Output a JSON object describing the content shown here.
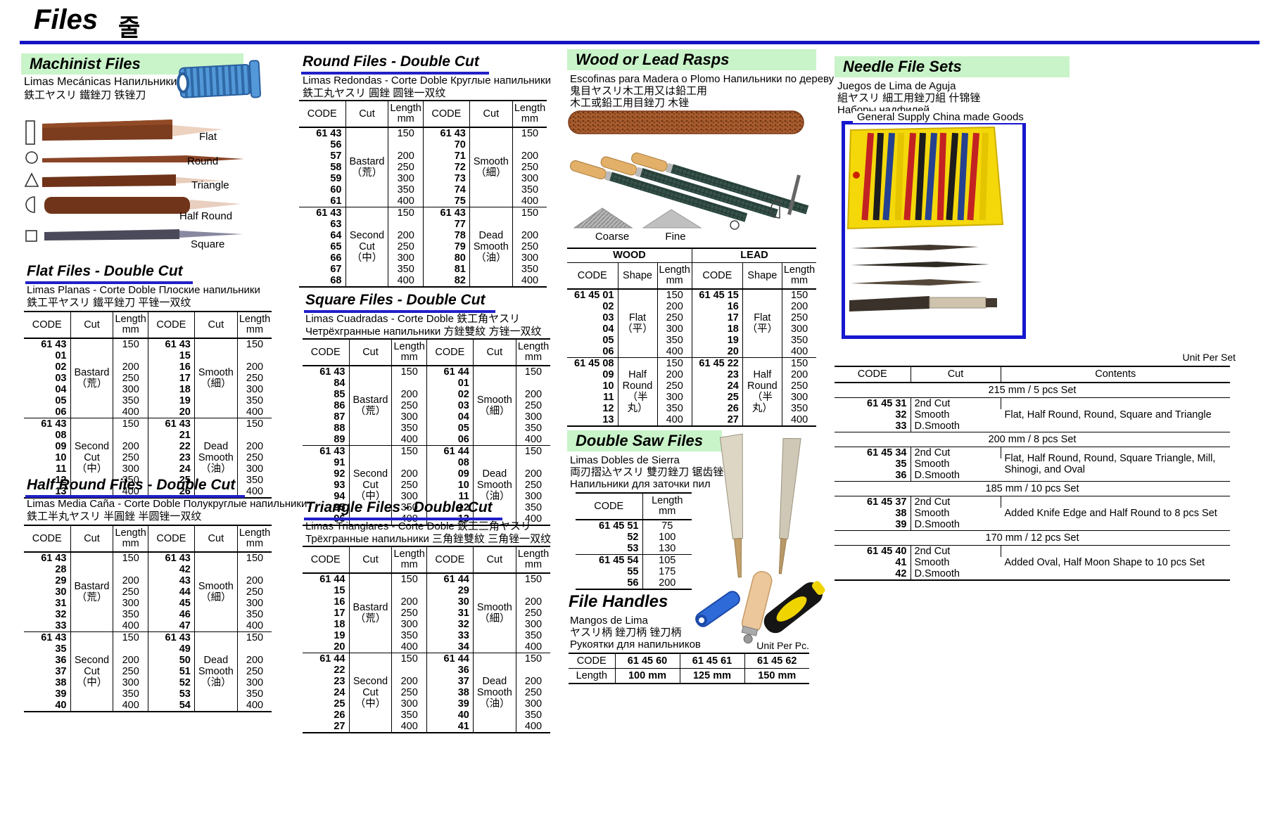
{
  "colors": {
    "accent_green": "#c9f3c9",
    "accent_blue": "#1717cf"
  },
  "header": {
    "title": "Files",
    "title_ko": "줄"
  },
  "machinist": {
    "title": "Machinist Files",
    "sub_es": "Limas Mecánicas Напильники",
    "sub_cjk": "鉄工ヤスリ 鐵銼刀 铁锉刀",
    "labels": [
      "Flat",
      "Round",
      "Triangle",
      "Half Round",
      "Square"
    ]
  },
  "flat": {
    "title": "Flat Files - Double Cut",
    "sub_es": "Limas Planas - Corte Doble Плоские напильники",
    "sub_cjk": "鉄工平ヤスリ 鐵平銼刀 平锉一双纹",
    "table": {
      "headers": [
        "CODE",
        "Cut",
        "Length\nmm",
        "CODE",
        "Cut",
        "Length\nmm"
      ],
      "groups": [
        {
          "cells": [
            {
              "codes": [
                "61 43 01",
                "02",
                "03",
                "04",
                "05",
                "06"
              ],
              "mid": "Bastard\n（荒）",
              "lengths": [
                "150",
                "200",
                "250",
                "300",
                "350",
                "400"
              ]
            },
            {
              "codes": [
                "61 43 15",
                "16",
                "17",
                "18",
                "19",
                "20"
              ],
              "mid": "Smooth\n（細）",
              "lengths": [
                "150",
                "200",
                "250",
                "300",
                "350",
                "400"
              ]
            }
          ]
        },
        {
          "cells": [
            {
              "codes": [
                "61 43 08",
                "09",
                "10",
                "11",
                "12",
                "13"
              ],
              "mid": "Second\nCut\n（中）",
              "lengths": [
                "150",
                "200",
                "250",
                "300",
                "350",
                "400"
              ]
            },
            {
              "codes": [
                "61 43 21",
                "22",
                "23",
                "24",
                "25",
                "26"
              ],
              "mid": "Dead\nSmooth\n（油）",
              "lengths": [
                "150",
                "200",
                "250",
                "300",
                "350",
                "400"
              ]
            }
          ]
        }
      ]
    }
  },
  "half_round": {
    "title": "Half Round Files - Double Cut",
    "sub_es": "Limas Media Caña - Corte Doble Полукруглые напильники",
    "sub_cjk": "鉄工半丸ヤスリ 半圓銼 半圆锉一双纹",
    "table": {
      "headers": [
        "CODE",
        "Cut",
        "Length\nmm",
        "CODE",
        "Cut",
        "Length\nmm"
      ],
      "groups": [
        {
          "cells": [
            {
              "codes": [
                "61 43 28",
                "29",
                "30",
                "31",
                "32",
                "33"
              ],
              "mid": "Bastard\n（荒）",
              "lengths": [
                "150",
                "200",
                "250",
                "300",
                "350",
                "400"
              ]
            },
            {
              "codes": [
                "61 43 42",
                "43",
                "44",
                "45",
                "46",
                "47"
              ],
              "mid": "Smooth\n（細）",
              "lengths": [
                "150",
                "200",
                "250",
                "300",
                "350",
                "400"
              ]
            }
          ]
        },
        {
          "cells": [
            {
              "codes": [
                "61 43 35",
                "36",
                "37",
                "38",
                "39",
                "40"
              ],
              "mid": "Second\nCut\n（中）",
              "lengths": [
                "150",
                "200",
                "250",
                "300",
                "350",
                "400"
              ]
            },
            {
              "codes": [
                "61 43 49",
                "50",
                "51",
                "52",
                "53",
                "54"
              ],
              "mid": "Dead\nSmooth\n（油）",
              "lengths": [
                "150",
                "200",
                "250",
                "300",
                "350",
                "400"
              ]
            }
          ]
        }
      ]
    }
  },
  "round": {
    "title": "Round Files - Double Cut",
    "sub_es": "Limas Redondas - Corte Doble Круглые напильники",
    "sub_cjk": "鉄工丸ヤスリ 圓銼 圆锉一双纹",
    "table": {
      "headers": [
        "CODE",
        "Cut",
        "Length\nmm",
        "CODE",
        "Cut",
        "Length\nmm"
      ],
      "groups": [
        {
          "cells": [
            {
              "codes": [
                "61 43 56",
                "57",
                "58",
                "59",
                "60",
                "61"
              ],
              "mid": "Bastard\n（荒）",
              "lengths": [
                "150",
                "200",
                "250",
                "300",
                "350",
                "400"
              ]
            },
            {
              "codes": [
                "61 43 70",
                "71",
                "72",
                "73",
                "74",
                "75"
              ],
              "mid": "Smooth\n（細）",
              "lengths": [
                "150",
                "200",
                "250",
                "300",
                "350",
                "400"
              ]
            }
          ]
        },
        {
          "cells": [
            {
              "codes": [
                "61 43 63",
                "64",
                "65",
                "66",
                "67",
                "68"
              ],
              "mid": "Second\nCut\n（中）",
              "lengths": [
                "150",
                "200",
                "250",
                "300",
                "350",
                "400"
              ]
            },
            {
              "codes": [
                "61 43 77",
                "78",
                "79",
                "80",
                "81",
                "82"
              ],
              "mid": "Dead\nSmooth\n（油）",
              "lengths": [
                "150",
                "200",
                "250",
                "300",
                "350",
                "400"
              ]
            }
          ]
        }
      ]
    }
  },
  "square": {
    "title": "Square Files - Double Cut",
    "sub_es": "Limas Cuadradas - Corte Doble 鉄工角ヤスリ",
    "sub_cjk": "Четрёхгранные напильники 方銼雙紋 方锉一双纹",
    "table": {
      "headers": [
        "CODE",
        "Cut",
        "Length\nmm",
        "CODE",
        "Cut",
        "Length\nmm"
      ],
      "groups": [
        {
          "cells": [
            {
              "codes": [
                "61 43 84",
                "85",
                "86",
                "87",
                "88",
                "89"
              ],
              "mid": "Bastard\n（荒）",
              "lengths": [
                "150",
                "200",
                "250",
                "300",
                "350",
                "400"
              ]
            },
            {
              "codes": [
                "61 44 01",
                "02",
                "03",
                "04",
                "05",
                "06"
              ],
              "mid": "Smooth\n（細）",
              "lengths": [
                "150",
                "200",
                "250",
                "300",
                "350",
                "400"
              ]
            }
          ]
        },
        {
          "cells": [
            {
              "codes": [
                "61 43 91",
                "92",
                "93",
                "94",
                "95",
                "96"
              ],
              "mid": "Second\nCut\n（中）",
              "lengths": [
                "150",
                "200",
                "250",
                "300",
                "350",
                "400"
              ]
            },
            {
              "codes": [
                "61 44 08",
                "09",
                "10",
                "11",
                "12",
                "13"
              ],
              "mid": "Dead\nSmooth\n（油）",
              "lengths": [
                "150",
                "200",
                "250",
                "300",
                "350",
                "400"
              ]
            }
          ]
        }
      ]
    }
  },
  "triangle": {
    "title": "Triangle Files - Double Cut",
    "sub_es": "Limas Trianglares - Corte Doble 鉄工三角ヤスリ",
    "sub_cjk": "Трёхгранные напильники 三角銼雙紋 三角锉一双纹",
    "table": {
      "headers": [
        "CODE",
        "Cut",
        "Length\nmm",
        "CODE",
        "Cut",
        "Length\nmm"
      ],
      "groups": [
        {
          "cells": [
            {
              "codes": [
                "61 44 15",
                "16",
                "17",
                "18",
                "19",
                "20"
              ],
              "mid": "Bastard\n（荒）",
              "lengths": [
                "150",
                "200",
                "250",
                "300",
                "350",
                "400"
              ]
            },
            {
              "codes": [
                "61 44 29",
                "30",
                "31",
                "32",
                "33",
                "34"
              ],
              "mid": "Smooth\n（細）",
              "lengths": [
                "150",
                "200",
                "250",
                "300",
                "350",
                "400"
              ]
            }
          ]
        },
        {
          "cells": [
            {
              "codes": [
                "61 44 22",
                "23",
                "24",
                "25",
                "26",
                "27"
              ],
              "mid": "Second\nCut\n（中）",
              "lengths": [
                "150",
                "200",
                "250",
                "300",
                "350",
                "400"
              ]
            },
            {
              "codes": [
                "61 44 36",
                "37",
                "38",
                "39",
                "40",
                "41"
              ],
              "mid": "Dead\nSmooth\n（油）",
              "lengths": [
                "150",
                "200",
                "250",
                "300",
                "350",
                "400"
              ]
            }
          ]
        }
      ]
    }
  },
  "rasps": {
    "title": "Wood or Lead Rasps",
    "sub_es": "Escofinas para Madera o Plomo Напильники по дереву",
    "sub_jp": "鬼目ヤスリ木工用又は鉛工用",
    "sub_cn": "木工或鉛工用目銼刀 木锉",
    "coarse_label": "Coarse",
    "fine_label": "Fine",
    "table": {
      "group_headers": [
        "WOOD",
        "LEAD"
      ],
      "headers": [
        "CODE",
        "Shape",
        "Length\nmm",
        "CODE",
        "Shape",
        "Length\nmm"
      ],
      "groups": [
        {
          "cells": [
            {
              "codes": [
                "61 45 01",
                "02",
                "03",
                "04",
                "05",
                "06"
              ],
              "mid": "Flat\n（平）",
              "lengths": [
                "150",
                "200",
                "250",
                "300",
                "350",
                "400"
              ]
            },
            {
              "codes": [
                "61 45 15",
                "16",
                "17",
                "18",
                "19",
                "20"
              ],
              "mid": "Flat\n（平）",
              "lengths": [
                "150",
                "200",
                "250",
                "300",
                "350",
                "400"
              ]
            }
          ]
        },
        {
          "cells": [
            {
              "codes": [
                "61 45 08",
                "09",
                "10",
                "11",
                "12",
                "13"
              ],
              "mid": "Half\nRound\n（半丸）",
              "lengths": [
                "150",
                "200",
                "250",
                "300",
                "350",
                "400"
              ]
            },
            {
              "codes": [
                "61 45 22",
                "23",
                "24",
                "25",
                "26",
                "27"
              ],
              "mid": "Half\nRound\n（半丸）",
              "lengths": [
                "150",
                "200",
                "250",
                "300",
                "350",
                "400"
              ]
            }
          ]
        }
      ]
    }
  },
  "saw": {
    "title": "Double Saw Files",
    "sub_es": "Limas Dobles de Sierra",
    "sub_jp": "両刃摺込ヤスリ 雙刃銼刀 锯齿锉",
    "sub_ru": "Напильники для заточки пил",
    "table": {
      "headers": [
        "CODE",
        "Length\nmm"
      ],
      "groups": [
        {
          "codes": [
            "61 45 51",
            "52",
            "53"
          ],
          "lengths": [
            "75",
            "100",
            "130"
          ]
        },
        {
          "codes": [
            "61 45 54",
            "55",
            "56"
          ],
          "lengths": [
            "105",
            "175",
            "200"
          ]
        }
      ]
    }
  },
  "handles": {
    "title": "File Handles",
    "sub_es": "Mangos de Lima",
    "sub_jp": "ヤスリ柄 銼刀柄 锉刀柄",
    "sub_ru": "Рукоятки для напильников",
    "unit_label": "Unit Per Pc.",
    "table": {
      "rows": [
        [
          "CODE",
          "61 45 60",
          "61 45 61",
          "61 45 62"
        ],
        [
          "Length",
          "100 mm",
          "125 mm",
          "150 mm"
        ]
      ]
    }
  },
  "needle": {
    "title": "Needle File Sets",
    "sub_es": "Juegos de Lima de Aguja",
    "sub_jp": "組ヤスリ 細工用銼刀組 什锦锉",
    "sub_ru": "Наборы надфилей",
    "photo_label": "General Supply China made Goods",
    "unit_label": "Unit Per Set",
    "table": {
      "headers": [
        "CODE",
        "Cut",
        "Contents"
      ],
      "groups": [
        {
          "set_label": "215 mm / 5 pcs Set",
          "codes": [
            "61 45 31",
            "32",
            "33"
          ],
          "cuts": [
            "2nd Cut",
            "Smooth",
            "D.Smooth"
          ],
          "contents": "Flat, Half Round, Round, Square and Triangle"
        },
        {
          "set_label": "200 mm / 8 pcs Set",
          "codes": [
            "61 45 34",
            "35",
            "36"
          ],
          "cuts": [
            "2nd Cut",
            "Smooth",
            "D.Smooth"
          ],
          "contents": "Flat, Half Round, Round, Square Triangle, Mill, Shinogi, and Oval"
        },
        {
          "set_label": "185 mm / 10 pcs Set",
          "codes": [
            "61 45 37",
            "38",
            "39"
          ],
          "cuts": [
            "2nd Cut",
            "Smooth",
            "D.Smooth"
          ],
          "contents": "Added Knife Edge and Half Round to 8 pcs Set"
        },
        {
          "set_label": "170 mm / 12 pcs Set",
          "codes": [
            "61 45 40",
            "41",
            "42"
          ],
          "cuts": [
            "2nd Cut",
            "Smooth",
            "D.Smooth"
          ],
          "contents": "Added Oval, Half Moon Shape to 10 pcs Set"
        }
      ]
    }
  }
}
